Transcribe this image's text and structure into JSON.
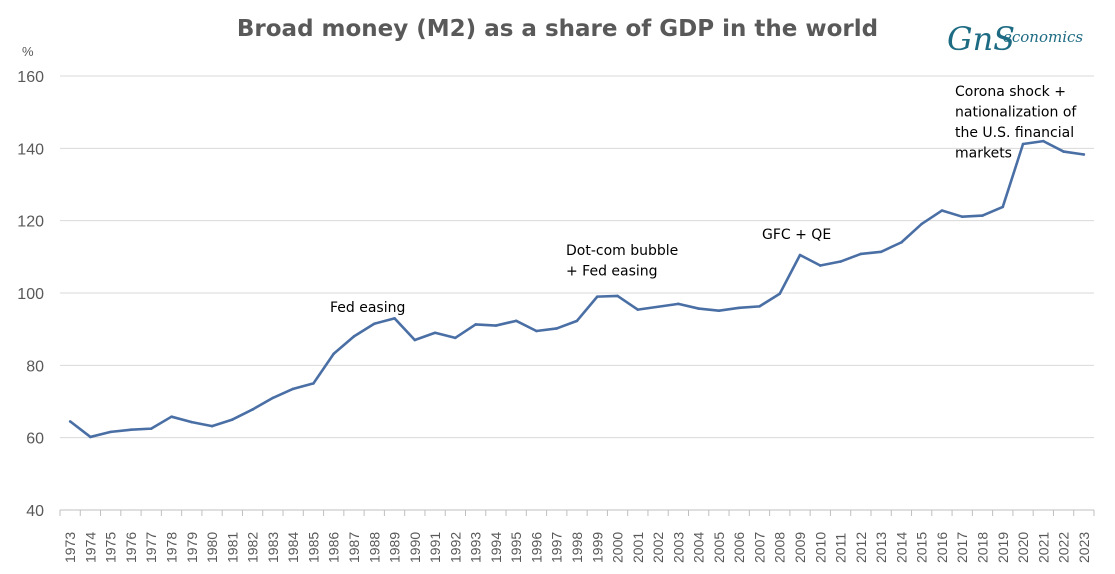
{
  "chart_data": {
    "type": "line",
    "title": "Broad money (M2) as a share of GDP in the world",
    "ylabel": "%",
    "xlabel": "",
    "ylim": [
      40,
      160
    ],
    "yticks": [
      40,
      60,
      80,
      100,
      120,
      140,
      160
    ],
    "grid": "horizontal",
    "legend": "none",
    "line_color": "#4a6fa5",
    "x": [
      "1973",
      "1974",
      "1975",
      "1976",
      "1977",
      "1978",
      "1979",
      "1980",
      "1981",
      "1982",
      "1983",
      "1984",
      "1985",
      "1986",
      "1987",
      "1988",
      "1989",
      "1990",
      "1991",
      "1992",
      "1993",
      "1994",
      "1995",
      "1996",
      "1997",
      "1998",
      "1999",
      "2000",
      "2001",
      "2002",
      "2003",
      "2004",
      "2005",
      "2006",
      "2007",
      "2008",
      "2009",
      "2010",
      "2011",
      "2012",
      "2013",
      "2014",
      "2015",
      "2016",
      "2017",
      "2018",
      "2019",
      "2020",
      "2021",
      "2022",
      "2023"
    ],
    "series": [
      {
        "values": [
          64.5,
          60.2,
          61.6,
          62.2,
          62.5,
          65.8,
          64.3,
          63.2,
          65.0,
          67.8,
          71.0,
          73.5,
          75.0,
          83.2,
          88.0,
          91.5,
          93.0,
          87.0,
          89.0,
          87.6,
          91.3,
          91.0,
          92.3,
          89.5,
          90.2,
          92.3,
          99.0,
          99.2,
          95.4,
          96.2,
          97.0,
          95.7,
          95.1,
          95.9,
          96.3,
          99.8,
          110.5,
          107.6,
          108.7,
          110.8,
          111.4,
          114.0,
          119.1,
          122.8,
          121.1,
          121.4,
          123.8,
          141.2,
          142.0,
          139.1,
          138.3
        ]
      }
    ],
    "annotations": [
      {
        "lines": [
          "Fed easing"
        ],
        "year": "1987"
      },
      {
        "lines": [
          "Dot-com bubble",
          "+ Fed easing"
        ],
        "year": "1998"
      },
      {
        "lines": [
          "GFC + QE"
        ],
        "year": "2007"
      },
      {
        "lines": [
          "Corona shock +",
          "nationalization of",
          "the U.S. financial",
          "markets"
        ],
        "year": "2019"
      }
    ]
  },
  "logo": {
    "text": "economics",
    "mark": "GnS",
    "color": "#1d6b83"
  }
}
